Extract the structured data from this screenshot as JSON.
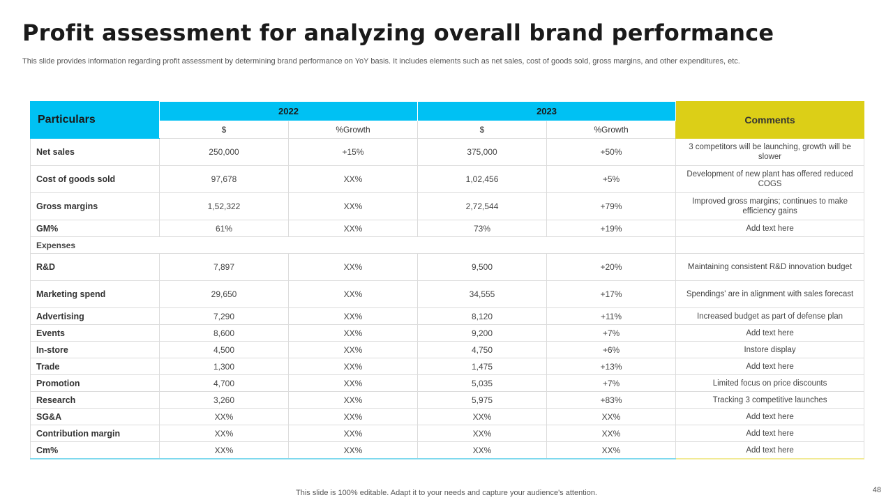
{
  "title": "Profit assessment for analyzing overall brand performance",
  "subtitle": "This slide provides information regarding profit assessment by determining brand performance on YoY basis. It includes elements such as net sales, cost of goods sold, gross margins, and other expenditures, etc.",
  "table": {
    "particulars_header": "Particulars",
    "comments_header": "Comments",
    "years": [
      "2022",
      "2023"
    ],
    "subheaders": [
      "$",
      "%Growth",
      "$",
      "%Growth"
    ],
    "rows": [
      {
        "label": "Net sales",
        "v2022": "250,000",
        "g2022": "+15%",
        "v2023": "375,000",
        "g2023": "+50%",
        "comment": "3 competitors will be launching, growth will be slower"
      },
      {
        "label": "Cost of goods sold",
        "v2022": "97,678",
        "g2022": "XX%",
        "v2023": "1,02,456",
        "g2023": "+5%",
        "comment": "Development of new plant has offered reduced COGS"
      },
      {
        "label": "Gross margins",
        "v2022": "1,52,322",
        "g2022": "XX%",
        "v2023": "2,72,544",
        "g2023": "+79%",
        "comment": "Improved gross margins; continues to make efficiency gains"
      },
      {
        "label": "GM%",
        "v2022": "61%",
        "g2022": "XX%",
        "v2023": "73%",
        "g2023": "+19%",
        "comment": "Add text here"
      },
      {
        "label": "R&D",
        "v2022": "7,897",
        "g2022": "XX%",
        "v2023": "9,500",
        "g2023": "+20%",
        "comment": "Maintaining consistent R&D innovation budget"
      },
      {
        "label": "Marketing spend",
        "v2022": "29,650",
        "g2022": "XX%",
        "v2023": "34,555",
        "g2023": "+17%",
        "comment": "Spendings' are in alignment with sales forecast"
      },
      {
        "label": "Advertising",
        "v2022": "7,290",
        "g2022": "XX%",
        "v2023": "8,120",
        "g2023": "+11%",
        "comment": "Increased budget as part of defense plan"
      },
      {
        "label": "Events",
        "v2022": "8,600",
        "g2022": "XX%",
        "v2023": "9,200",
        "g2023": "+7%",
        "comment": "Add text here"
      },
      {
        "label": "In-store",
        "v2022": "4,500",
        "g2022": "XX%",
        "v2023": "4,750",
        "g2023": "+6%",
        "comment": "Instore display"
      },
      {
        "label": "Trade",
        "v2022": "1,300",
        "g2022": "XX%",
        "v2023": "1,475",
        "g2023": "+13%",
        "comment": "Add text here"
      },
      {
        "label": "Promotion",
        "v2022": "4,700",
        "g2022": "XX%",
        "v2023": "5,035",
        "g2023": "+7%",
        "comment": "Limited focus on price discounts"
      },
      {
        "label": "Research",
        "v2022": "3,260",
        "g2022": "XX%",
        "v2023": "5,975",
        "g2023": "+83%",
        "comment": "Tracking 3 competitive launches"
      },
      {
        "label": "SG&A",
        "v2022": "XX%",
        "g2022": "XX%",
        "v2023": "XX%",
        "g2023": "XX%",
        "comment": "Add text here"
      },
      {
        "label": "Contribution margin",
        "v2022": "XX%",
        "g2022": "XX%",
        "v2023": "XX%",
        "g2023": "XX%",
        "comment": "Add text here"
      },
      {
        "label": "Cm%",
        "v2022": "XX%",
        "g2022": "XX%",
        "v2023": "XX%",
        "g2023": "XX%",
        "comment": "Add text here"
      }
    ],
    "section_label": "Expenses"
  },
  "footer": "This slide is 100% editable. Adapt it to your needs and capture your audience's attention.",
  "page_number": "48",
  "colors": {
    "header_blue": "#00c1f3",
    "header_yellow": "#dccf17"
  }
}
